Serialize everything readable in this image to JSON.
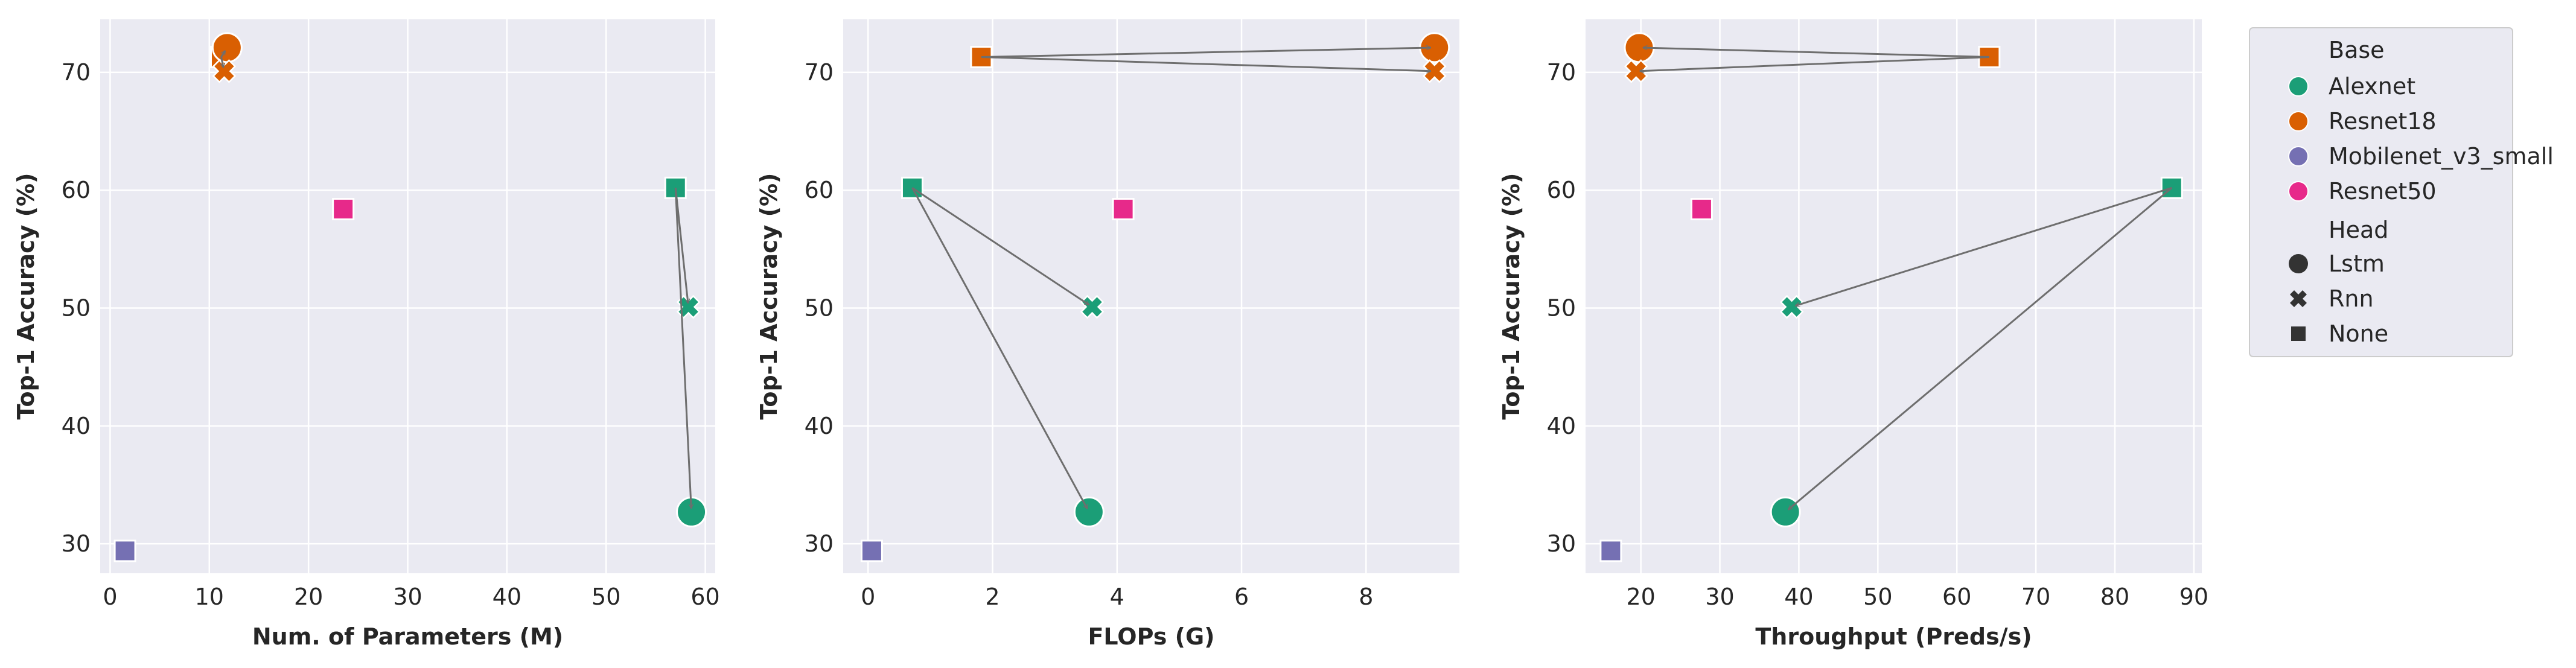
{
  "chart_data": [
    {
      "type": "scatter",
      "xlabel": "Num. of Parameters (M)",
      "ylabel": "Top-1 Accuracy (%)",
      "xlim": [
        -1,
        61
      ],
      "ylim": [
        27.5,
        74.5
      ],
      "xticks": [
        0,
        10,
        20,
        30,
        40,
        50,
        60
      ],
      "yticks": [
        30,
        40,
        50,
        60,
        70
      ],
      "grid": true,
      "points": [
        {
          "base": "Alexnet",
          "head": "None",
          "x": 57.0,
          "y": 60.2
        },
        {
          "base": "Alexnet",
          "head": "Rnn",
          "x": 58.3,
          "y": 50.1
        },
        {
          "base": "Alexnet",
          "head": "Lstm",
          "x": 58.6,
          "y": 32.7
        },
        {
          "base": "Resnet18",
          "head": "None",
          "x": 11.2,
          "y": 71.3
        },
        {
          "base": "Resnet18",
          "head": "Lstm",
          "x": 11.8,
          "y": 72.1
        },
        {
          "base": "Resnet18",
          "head": "Rnn",
          "x": 11.5,
          "y": 70.1
        },
        {
          "base": "Mobilenet_v3_small",
          "head": "None",
          "x": 1.5,
          "y": 29.4
        },
        {
          "base": "Resnet50",
          "head": "None",
          "x": 23.5,
          "y": 58.4
        }
      ],
      "arrows": [
        {
          "from": [
            57.0,
            60.2
          ],
          "to": [
            58.3,
            50.1
          ]
        },
        {
          "from": [
            57.0,
            60.2
          ],
          "to": [
            58.6,
            32.7
          ]
        },
        {
          "from": [
            11.2,
            71.3
          ],
          "to": [
            11.8,
            72.1
          ]
        },
        {
          "from": [
            11.2,
            71.3
          ],
          "to": [
            11.5,
            70.1
          ]
        }
      ]
    },
    {
      "type": "scatter",
      "xlabel": "FLOPs (G)",
      "ylabel": "Top-1 Accuracy (%)",
      "xlim": [
        -0.4,
        9.5
      ],
      "ylim": [
        27.5,
        74.5
      ],
      "xticks": [
        0,
        2,
        4,
        6,
        8
      ],
      "yticks": [
        30,
        40,
        50,
        60,
        70
      ],
      "grid": true,
      "points": [
        {
          "base": "Alexnet",
          "head": "None",
          "x": 0.71,
          "y": 60.2
        },
        {
          "base": "Alexnet",
          "head": "Rnn",
          "x": 3.6,
          "y": 50.1
        },
        {
          "base": "Alexnet",
          "head": "Lstm",
          "x": 3.55,
          "y": 32.7
        },
        {
          "base": "Resnet18",
          "head": "None",
          "x": 1.82,
          "y": 71.3
        },
        {
          "base": "Resnet18",
          "head": "Lstm",
          "x": 9.1,
          "y": 72.1
        },
        {
          "base": "Resnet18",
          "head": "Rnn",
          "x": 9.1,
          "y": 70.1
        },
        {
          "base": "Mobilenet_v3_small",
          "head": "None",
          "x": 0.06,
          "y": 29.4
        },
        {
          "base": "Resnet50",
          "head": "None",
          "x": 4.1,
          "y": 58.4
        }
      ],
      "arrows": [
        {
          "from": [
            0.71,
            60.2
          ],
          "to": [
            3.6,
            50.1
          ]
        },
        {
          "from": [
            0.71,
            60.2
          ],
          "to": [
            3.55,
            32.7
          ]
        },
        {
          "from": [
            1.82,
            71.3
          ],
          "to": [
            9.1,
            72.1
          ]
        },
        {
          "from": [
            1.82,
            71.3
          ],
          "to": [
            9.1,
            70.1
          ]
        }
      ]
    },
    {
      "type": "scatter",
      "xlabel": "Throughput (Preds/s)",
      "ylabel": "Top-1 Accuracy (%)",
      "xlim": [
        13,
        91
      ],
      "ylim": [
        27.5,
        74.5
      ],
      "xticks": [
        20,
        30,
        40,
        50,
        60,
        70,
        80,
        90
      ],
      "yticks": [
        30,
        40,
        50,
        60,
        70
      ],
      "grid": true,
      "points": [
        {
          "base": "Alexnet",
          "head": "None",
          "x": 87.2,
          "y": 60.2
        },
        {
          "base": "Alexnet",
          "head": "Rnn",
          "x": 39.1,
          "y": 50.1
        },
        {
          "base": "Alexnet",
          "head": "Lstm",
          "x": 38.3,
          "y": 32.7
        },
        {
          "base": "Resnet18",
          "head": "None",
          "x": 64.1,
          "y": 71.3
        },
        {
          "base": "Resnet18",
          "head": "Lstm",
          "x": 19.8,
          "y": 72.1
        },
        {
          "base": "Resnet18",
          "head": "Rnn",
          "x": 19.4,
          "y": 70.1
        },
        {
          "base": "Mobilenet_v3_small",
          "head": "None",
          "x": 16.2,
          "y": 29.4
        },
        {
          "base": "Resnet50",
          "head": "None",
          "x": 27.7,
          "y": 58.4
        }
      ],
      "arrows": [
        {
          "from": [
            87.2,
            60.2
          ],
          "to": [
            39.1,
            50.1
          ]
        },
        {
          "from": [
            87.2,
            60.2
          ],
          "to": [
            38.3,
            32.7
          ]
        },
        {
          "from": [
            64.1,
            71.3
          ],
          "to": [
            19.8,
            72.1
          ]
        },
        {
          "from": [
            64.1,
            71.3
          ],
          "to": [
            19.4,
            70.1
          ]
        }
      ]
    }
  ],
  "legend": {
    "placement": "outside right",
    "base_title": "Base",
    "base_items": [
      {
        "label": "Alexnet",
        "color": "#1b9e77"
      },
      {
        "label": "Resnet18",
        "color": "#d95f02"
      },
      {
        "label": "Mobilenet_v3_small",
        "color": "#7570b3"
      },
      {
        "label": "Resnet50",
        "color": "#e7298a"
      }
    ],
    "head_title": "Head",
    "head_items": [
      {
        "label": "Lstm",
        "marker": "circle"
      },
      {
        "label": "Rnn",
        "marker": "x"
      },
      {
        "label": "None",
        "marker": "square"
      }
    ]
  },
  "colors": {
    "Alexnet": "#1b9e77",
    "Resnet18": "#d95f02",
    "Mobilenet_v3_small": "#7570b3",
    "Resnet50": "#e7298a",
    "axes_bg": "#eaeaf2",
    "grid": "#ffffff",
    "arrow": "#6e6e6e"
  }
}
